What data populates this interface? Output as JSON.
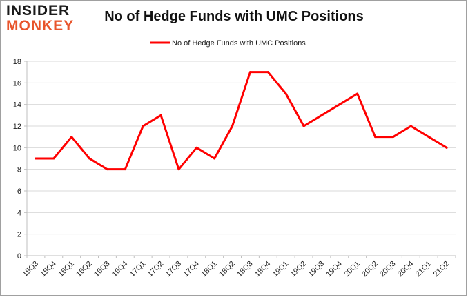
{
  "logo": {
    "line1": "INSIDER",
    "line2": "MONKEY"
  },
  "colors": {
    "series": "#ff0000",
    "grid": "#d9d9d9",
    "axis": "#bfbfbf",
    "logo_accent": "#e8542b"
  },
  "chart_data": {
    "type": "line",
    "title": "No of Hedge Funds with UMC Positions",
    "xlabel": "",
    "ylabel": "",
    "ylim": [
      0,
      18
    ],
    "yticks": [
      0,
      2,
      4,
      6,
      8,
      10,
      12,
      14,
      16,
      18
    ],
    "grid": true,
    "legend_position": "top-center",
    "categories": [
      "15Q3",
      "15Q4",
      "16Q1",
      "16Q2",
      "16Q3",
      "16Q4",
      "17Q1",
      "17Q2",
      "17Q3",
      "17Q4",
      "18Q1",
      "18Q2",
      "18Q3",
      "18Q4",
      "19Q1",
      "19Q2",
      "19Q3",
      "19Q4",
      "20Q1",
      "20Q2",
      "20Q3",
      "20Q4",
      "21Q1",
      "21Q2"
    ],
    "series": [
      {
        "name": "No of Hedge Funds with UMC Positions",
        "color": "#ff0000",
        "values": [
          9,
          9,
          11,
          9,
          8,
          8,
          12,
          13,
          8,
          10,
          9,
          12,
          17,
          17,
          15,
          12,
          13,
          14,
          15,
          11,
          11,
          12,
          11,
          10
        ]
      }
    ]
  }
}
